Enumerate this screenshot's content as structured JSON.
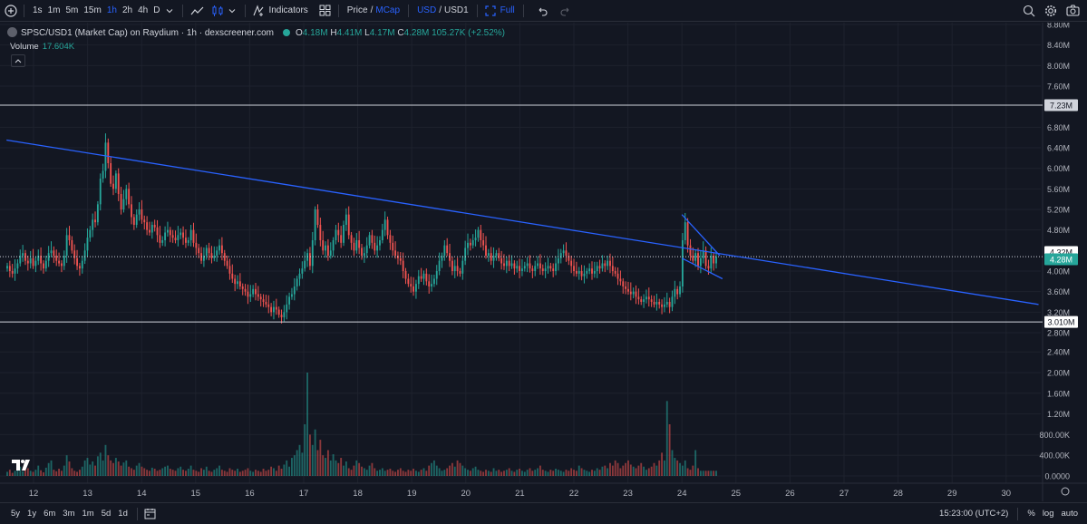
{
  "toolbar": {
    "intervals": [
      "1s",
      "1m",
      "5m",
      "15m",
      "1h",
      "2h",
      "4h",
      "D"
    ],
    "active_interval": "1h",
    "indicators_label": "Indicators",
    "price_label": "Price",
    "slash1": "/",
    "mcap_label": "MCap",
    "usd_label": "USD",
    "slash2": "/",
    "usd1_label": "USD1",
    "full_label": "Full"
  },
  "legend": {
    "title": "SPSC/USD1 (Market Cap) on Raydium · 1h · dexscreener.com",
    "o_label": "O",
    "o_value": "4.18M",
    "h_label": "H",
    "h_value": "4.41M",
    "l_label": "L",
    "l_value": "4.17M",
    "c_label": "C",
    "c_value": "4.28M",
    "change": "105.27K (+2.52%)",
    "volume_label": "Volume",
    "volume_value": "17.604K"
  },
  "colors": {
    "up": "#26a69a",
    "down": "#ef5350",
    "trendline": "#2962ff",
    "background": "#131722"
  },
  "chart_data": {
    "type": "candlestick",
    "price_axis_labels": [
      "8.80M",
      "8.40M",
      "8.00M",
      "7.60M",
      "6.80M",
      "6.40M",
      "6.00M",
      "5.60M",
      "5.20M",
      "4.80M",
      "4.00M",
      "3.60M",
      "3.20M",
      "2.80M",
      "2.40M",
      "2.00M",
      "1.60M",
      "1.20M",
      "800.00K",
      "400.00K",
      "0.0000"
    ],
    "price_ylim": [
      2.4,
      8.8
    ],
    "volume_ylim": [
      0,
      2.0
    ],
    "x_labels": [
      "12",
      "13",
      "14",
      "15",
      "16",
      "17",
      "18",
      "19",
      "20",
      "21",
      "22",
      "23",
      "24",
      "25",
      "26",
      "27",
      "28",
      "29",
      "30"
    ],
    "horizontal_lines": [
      {
        "value": 7.23,
        "label": "7.23M"
      },
      {
        "value": 3.01,
        "label": "3.010M"
      }
    ],
    "current_price": {
      "value": 4.28,
      "label": "4.28M"
    },
    "crosshair_price": {
      "value": 4.32,
      "label": "4.32M"
    },
    "trendline": {
      "from": [
        11.5,
        6.55
      ],
      "to": [
        30.6,
        3.35
      ]
    },
    "wedge": {
      "upper_from": [
        24.0,
        5.1
      ],
      "upper_to": [
        24.7,
        4.3
      ],
      "lower_from": [
        24.0,
        4.25
      ],
      "lower_to": [
        24.75,
        3.85
      ]
    },
    "closes": [
      4.1,
      4.0,
      3.95,
      4.05,
      4.15,
      4.3,
      4.35,
      4.2,
      4.15,
      4.25,
      4.1,
      4.2,
      4.3,
      4.15,
      4.05,
      4.2,
      4.35,
      4.4,
      4.3,
      4.2,
      4.15,
      4.1,
      4.3,
      4.7,
      4.6,
      4.4,
      4.25,
      4.1,
      4.05,
      4.2,
      4.4,
      4.65,
      4.8,
      5.0,
      4.95,
      5.3,
      5.8,
      5.95,
      6.5,
      6.1,
      5.7,
      5.6,
      5.9,
      5.5,
      5.2,
      5.4,
      5.6,
      5.3,
      5.05,
      4.9,
      5.1,
      5.2,
      5.0,
      4.95,
      4.8,
      4.75,
      4.9,
      4.85,
      4.7,
      4.55,
      4.6,
      4.75,
      4.8,
      4.7,
      4.65,
      4.6,
      4.7,
      4.75,
      4.65,
      4.55,
      4.6,
      4.8,
      4.55,
      4.45,
      4.35,
      4.2,
      4.3,
      4.45,
      4.35,
      4.25,
      4.3,
      4.4,
      4.5,
      4.35,
      4.2,
      4.1,
      3.95,
      3.85,
      3.75,
      3.8,
      3.7,
      3.65,
      3.6,
      3.5,
      3.55,
      3.65,
      3.55,
      3.5,
      3.45,
      3.4,
      3.35,
      3.3,
      3.2,
      3.3,
      3.25,
      3.15,
      3.1,
      3.2,
      3.35,
      3.5,
      3.55,
      3.7,
      3.85,
      3.95,
      4.05,
      4.2,
      4.35,
      4.1,
      4.6,
      5.2,
      4.9,
      4.6,
      4.4,
      4.5,
      4.3,
      4.4,
      4.6,
      4.8,
      4.7,
      4.55,
      4.9,
      5.1,
      4.7,
      4.55,
      4.4,
      4.6,
      4.45,
      4.3,
      4.35,
      4.5,
      4.7,
      4.55,
      4.4,
      4.5,
      4.6,
      4.8,
      5.0,
      4.7,
      4.55,
      4.4,
      4.3,
      4.25,
      4.2,
      4.0,
      3.85,
      3.75,
      3.7,
      3.6,
      3.75,
      3.9,
      3.85,
      3.95,
      3.8,
      3.7,
      3.75,
      3.85,
      4.0,
      4.2,
      4.3,
      4.5,
      4.35,
      4.2,
      4.0,
      4.1,
      4.0,
      3.95,
      4.2,
      4.45,
      4.55,
      4.5,
      4.6,
      4.65,
      4.8,
      4.6,
      4.5,
      4.3,
      4.35,
      4.2,
      4.3,
      4.35,
      4.25,
      4.15,
      4.1,
      4.2,
      4.1,
      4.15,
      4.05,
      4.1,
      4.0,
      4.05,
      4.1,
      4.15,
      4.05,
      4.0,
      4.1,
      4.15,
      4.05,
      4.0,
      4.05,
      4.1,
      4.05,
      4.0,
      4.15,
      4.25,
      4.35,
      4.4,
      4.3,
      4.2,
      4.1,
      4.0,
      3.95,
      4.0,
      3.9,
      3.95,
      4.0,
      4.05,
      3.95,
      4.0,
      4.1,
      4.05,
      4.15,
      4.1,
      4.2,
      4.1,
      4.0,
      3.95,
      3.85,
      3.8,
      3.7,
      3.65,
      3.6,
      3.55,
      3.6,
      3.5,
      3.45,
      3.4,
      3.45,
      3.5,
      3.45,
      3.4,
      3.35,
      3.4,
      3.35,
      3.3,
      3.35,
      3.4,
      3.3,
      3.5,
      3.65,
      3.55,
      3.7,
      4.6,
      4.95,
      4.5,
      4.3,
      4.2,
      4.35,
      4.1,
      4.25,
      4.4,
      4.1,
      4.05,
      4.3,
      4.15,
      4.28
    ],
    "volumes": [
      0.08,
      0.12,
      0.06,
      0.1,
      0.14,
      0.18,
      0.09,
      0.22,
      0.15,
      0.1,
      0.08,
      0.12,
      0.2,
      0.11,
      0.07,
      0.16,
      0.25,
      0.3,
      0.12,
      0.09,
      0.14,
      0.1,
      0.2,
      0.4,
      0.28,
      0.15,
      0.1,
      0.08,
      0.12,
      0.18,
      0.3,
      0.35,
      0.22,
      0.28,
      0.2,
      0.38,
      0.45,
      0.3,
      0.6,
      0.4,
      0.3,
      0.25,
      0.35,
      0.28,
      0.2,
      0.26,
      0.3,
      0.18,
      0.15,
      0.12,
      0.2,
      0.25,
      0.18,
      0.15,
      0.12,
      0.1,
      0.16,
      0.14,
      0.1,
      0.12,
      0.15,
      0.18,
      0.2,
      0.14,
      0.12,
      0.1,
      0.15,
      0.18,
      0.12,
      0.1,
      0.14,
      0.2,
      0.12,
      0.1,
      0.08,
      0.15,
      0.12,
      0.18,
      0.1,
      0.08,
      0.12,
      0.15,
      0.2,
      0.12,
      0.1,
      0.08,
      0.15,
      0.12,
      0.1,
      0.14,
      0.08,
      0.1,
      0.12,
      0.15,
      0.1,
      0.08,
      0.12,
      0.1,
      0.08,
      0.14,
      0.1,
      0.12,
      0.18,
      0.15,
      0.1,
      0.2,
      0.14,
      0.22,
      0.3,
      0.18,
      0.35,
      0.4,
      0.5,
      0.6,
      0.45,
      1.0,
      2.0,
      0.8,
      0.6,
      0.9,
      0.5,
      0.7,
      0.4,
      0.35,
      0.5,
      0.3,
      0.42,
      0.3,
      0.25,
      0.35,
      0.2,
      0.28,
      0.15,
      0.12,
      0.2,
      0.3,
      0.25,
      0.18,
      0.15,
      0.12,
      0.2,
      0.25,
      0.15,
      0.1,
      0.12,
      0.15,
      0.1,
      0.12,
      0.14,
      0.1,
      0.08,
      0.12,
      0.15,
      0.1,
      0.08,
      0.12,
      0.1,
      0.14,
      0.1,
      0.08,
      0.12,
      0.15,
      0.1,
      0.2,
      0.25,
      0.3,
      0.2,
      0.15,
      0.1,
      0.12,
      0.15,
      0.2,
      0.25,
      0.18,
      0.3,
      0.25,
      0.2,
      0.15,
      0.12,
      0.1,
      0.15,
      0.18,
      0.12,
      0.1,
      0.08,
      0.12,
      0.1,
      0.08,
      0.15,
      0.1,
      0.12,
      0.08,
      0.1,
      0.12,
      0.15,
      0.1,
      0.08,
      0.12,
      0.14,
      0.1,
      0.08,
      0.12,
      0.15,
      0.1,
      0.12,
      0.15,
      0.2,
      0.12,
      0.1,
      0.08,
      0.12,
      0.1,
      0.14,
      0.12,
      0.1,
      0.08,
      0.12,
      0.1,
      0.15,
      0.12,
      0.1,
      0.2,
      0.15,
      0.12,
      0.1,
      0.08,
      0.12,
      0.1,
      0.15,
      0.12,
      0.18,
      0.2,
      0.15,
      0.25,
      0.2,
      0.3,
      0.25,
      0.15,
      0.2,
      0.25,
      0.3,
      0.22,
      0.18,
      0.15,
      0.2,
      0.25,
      0.18,
      0.12,
      0.15,
      0.18,
      0.25,
      0.2,
      0.3,
      0.45,
      0.3,
      1.45,
      1.0,
      0.5,
      0.35,
      0.3,
      0.25,
      0.2,
      0.3,
      0.15,
      0.12,
      0.2,
      0.5,
      0.15,
      0.1
    ]
  },
  "bottombar": {
    "ranges": [
      "5y",
      "1y",
      "6m",
      "3m",
      "1m",
      "5d",
      "1d"
    ],
    "time": "15:23:00 (UTC+2)",
    "percent_label": "%",
    "log_label": "log",
    "auto_label": "auto"
  }
}
